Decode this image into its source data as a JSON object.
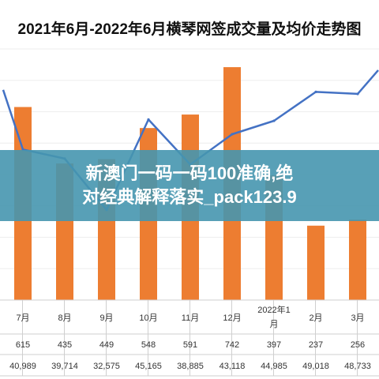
{
  "title": "2021年6月-2022年6月横琴网签成交量及均价走势图",
  "overlay": {
    "line1": "新澳门一码一码100准确,绝",
    "line2": "对经典解释落实_pack123.9"
  },
  "colors": {
    "bar": "#ed7d31",
    "line": "#4472c4",
    "banner": "#4696af"
  },
  "chart_data": {
    "type": "bar",
    "categories": [
      "7月",
      "8月",
      "9月",
      "10月",
      "11月",
      "12月",
      "2022年1月",
      "2月",
      "3月"
    ],
    "series": [
      {
        "values": [
          615,
          435,
          449,
          548,
          591,
          742,
          397,
          237,
          256
        ]
      },
      {
        "type": "line",
        "values": [
          40989,
          39714,
          32575,
          45165,
          38885,
          43118,
          44985,
          49018,
          48733
        ]
      }
    ],
    "table": [
      [
        "615",
        "435",
        "449",
        "548",
        "591",
        "742",
        "397",
        "237",
        "256"
      ],
      [
        "40,989",
        "39,714",
        "32,575",
        "45,165",
        "38,885",
        "43,118",
        "44,985",
        "49,018",
        "48,733"
      ]
    ]
  }
}
